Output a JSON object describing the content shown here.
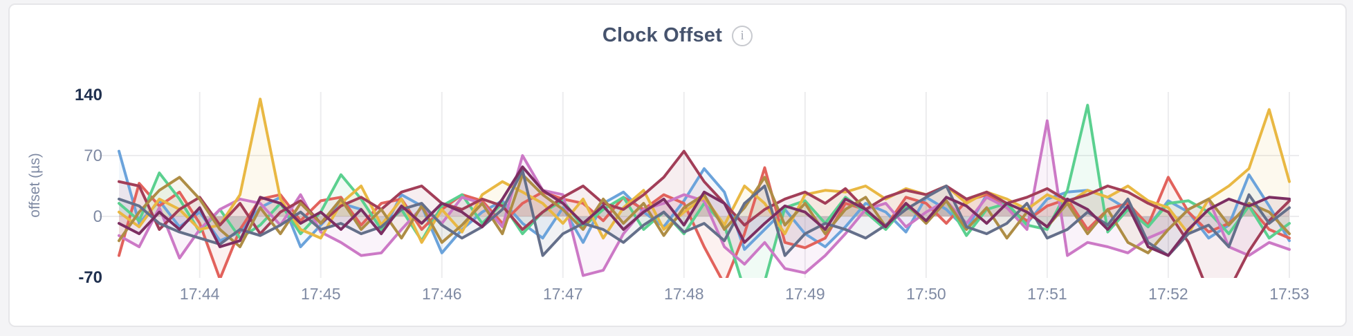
{
  "page": {
    "background_color": "#f4f4f6"
  },
  "card": {
    "background_color": "#ffffff",
    "border_color": "#e6e6e9"
  },
  "header": {
    "title": "Clock Offset",
    "info_icon_glyph": "i"
  },
  "chart_data": {
    "type": "line",
    "title": "Clock Offset",
    "xlabel": "",
    "ylabel": "offset (µs)",
    "x_start_time": "17:43:20",
    "x_end_time": "17:53:00",
    "sample_interval_seconds": 10,
    "x_tick_labels": [
      "17:44",
      "17:45",
      "17:46",
      "17:47",
      "17:48",
      "17:49",
      "17:50",
      "17:51",
      "17:52",
      "17:53"
    ],
    "x_tick_sample_indices": [
      4,
      10,
      16,
      22,
      28,
      34,
      40,
      46,
      52,
      58
    ],
    "ylim": [
      -70,
      140
    ],
    "y_ticks": [
      {
        "label": "140",
        "value": 140,
        "emphasized": true
      },
      {
        "label": "70",
        "value": 70,
        "emphasized": false
      },
      {
        "label": "0",
        "value": 0,
        "emphasized": false
      },
      {
        "label": "-70",
        "value": -70,
        "emphasized": true
      }
    ],
    "grid": {
      "vertical_at_x_ticks": true,
      "horizontal_at_values": [
        70,
        0
      ]
    },
    "legend": "none",
    "style": {
      "grid_color": "#ececee",
      "tick_label_color": "#7f8aa3",
      "emphasized_tick_color": "#20304f",
      "line_width": 4,
      "area_fill_opacity": 0.09
    },
    "series": [
      {
        "name": "series-1",
        "color": "#6BA3DB",
        "values": [
          75,
          -8,
          18,
          -12,
          5,
          -28,
          -18,
          10,
          22,
          -35,
          -10,
          15,
          8,
          -20,
          25,
          12,
          -42,
          -15,
          5,
          18,
          -8,
          -25,
          10,
          -30,
          15,
          28,
          5,
          -12,
          18,
          55,
          28,
          -38,
          -15,
          8,
          -20,
          -35,
          -12,
          15,
          5,
          -18,
          22,
          8,
          -15,
          25,
          12,
          -8,
          20,
          28,
          30,
          22,
          8,
          -12,
          18,
          5,
          -25,
          -10,
          48,
          12,
          -28
        ]
      },
      {
        "name": "series-2",
        "color": "#E2625C",
        "values": [
          -45,
          38,
          12,
          28,
          -8,
          -72,
          -15,
          20,
          25,
          -5,
          18,
          22,
          -10,
          15,
          20,
          -15,
          8,
          25,
          18,
          -8,
          15,
          28,
          20,
          15,
          -5,
          22,
          8,
          25,
          15,
          -35,
          -78,
          -20,
          56,
          -30,
          -36,
          -25,
          15,
          8,
          -12,
          22,
          15,
          -8,
          18,
          25,
          10,
          -5,
          12,
          20,
          -15,
          8,
          15,
          -10,
          45,
          5,
          -18,
          -8,
          12,
          -15,
          -25
        ]
      },
      {
        "name": "series-3",
        "color": "#5BD08F",
        "values": [
          15,
          -5,
          50,
          20,
          -18,
          8,
          -25,
          -10,
          15,
          -20,
          5,
          48,
          20,
          -15,
          8,
          -28,
          12,
          25,
          -8,
          15,
          -20,
          5,
          18,
          -12,
          8,
          22,
          -15,
          5,
          -20,
          15,
          -10,
          -85,
          -75,
          10,
          18,
          -8,
          22,
          5,
          -15,
          12,
          -5,
          18,
          -22,
          8,
          15,
          -10,
          -15,
          30,
          128,
          -18,
          8,
          -12,
          15,
          18,
          5,
          -20,
          12,
          -25,
          -8
        ]
      },
      {
        "name": "series-4",
        "color": "#CC79C6",
        "values": [
          -22,
          -35,
          10,
          -48,
          -15,
          8,
          20,
          15,
          -10,
          25,
          -18,
          -30,
          -45,
          -42,
          -15,
          10,
          -8,
          22,
          15,
          -12,
          70,
          30,
          25,
          -68,
          -62,
          -20,
          8,
          15,
          25,
          18,
          -35,
          -55,
          -30,
          -60,
          -65,
          -45,
          -20,
          8,
          15,
          -12,
          5,
          18,
          -8,
          22,
          10,
          -15,
          110,
          -45,
          -30,
          -35,
          -42,
          -25,
          -15,
          8,
          20,
          -35,
          -45,
          -30,
          -38
        ]
      },
      {
        "name": "series-5",
        "color": "#E9B843",
        "values": [
          5,
          -12,
          20,
          8,
          -15,
          -10,
          25,
          135,
          20,
          -15,
          -25,
          15,
          35,
          -10,
          20,
          -30,
          8,
          -18,
          25,
          40,
          28,
          15,
          -8,
          20,
          -25,
          10,
          30,
          -15,
          5,
          22,
          -10,
          35,
          15,
          -20,
          25,
          30,
          28,
          35,
          20,
          32,
          25,
          35,
          15,
          28,
          20,
          8,
          25,
          15,
          30,
          22,
          35,
          18,
          10,
          -20,
          20,
          35,
          55,
          123,
          40
        ]
      },
      {
        "name": "series-6",
        "color": "#A23E58",
        "values": [
          40,
          35,
          -15,
          8,
          22,
          -10,
          15,
          -20,
          5,
          18,
          -8,
          12,
          22,
          8,
          28,
          35,
          15,
          8,
          20,
          12,
          -15,
          5,
          22,
          35,
          15,
          8,
          25,
          45,
          75,
          40,
          15,
          -10,
          8,
          20,
          28,
          15,
          32,
          8,
          22,
          30,
          25,
          35,
          20,
          28,
          15,
          22,
          32,
          18,
          25,
          35,
          28,
          15,
          5,
          -30,
          -88,
          -85,
          -40,
          -5,
          18
        ]
      },
      {
        "name": "series-7",
        "color": "#AE8D45",
        "values": [
          -28,
          5,
          30,
          45,
          20,
          -15,
          -35,
          10,
          -20,
          15,
          -8,
          20,
          -15,
          8,
          -25,
          12,
          -30,
          -10,
          15,
          -20,
          48,
          25,
          8,
          -15,
          20,
          -8,
          15,
          -22,
          10,
          25,
          -15,
          10,
          45,
          -10,
          15,
          -20,
          8,
          22,
          -12,
          15,
          -8,
          18,
          -15,
          10,
          -25,
          5,
          -12,
          15,
          -20,
          8,
          -30,
          -42,
          -15,
          8,
          20,
          -10,
          15,
          5,
          -20
        ]
      },
      {
        "name": "series-8",
        "color": "#646F8A",
        "values": [
          20,
          12,
          -8,
          -18,
          -25,
          -32,
          -15,
          -22,
          -10,
          5,
          -15,
          -8,
          -20,
          -12,
          8,
          15,
          -10,
          -25,
          -12,
          8,
          53,
          -45,
          -20,
          -8,
          -15,
          -30,
          -10,
          5,
          -18,
          -8,
          -28,
          15,
          35,
          -45,
          -20,
          -8,
          -15,
          -25,
          -10,
          8,
          22,
          35,
          -12,
          -20,
          -8,
          15,
          -25,
          -15,
          5,
          -10,
          20,
          -30,
          -45,
          -20,
          -10,
          -35,
          25,
          -8,
          10
        ]
      },
      {
        "name": "series-9",
        "color": "#7C2E62",
        "values": [
          -8,
          -20,
          5,
          -15,
          10,
          -35,
          -28,
          22,
          15,
          -8,
          5,
          -15,
          8,
          -20,
          12,
          -8,
          15,
          5,
          -12,
          20,
          57,
          30,
          15,
          -8,
          12,
          -15,
          5,
          20,
          -10,
          28,
          15,
          -30,
          -8,
          12,
          5,
          -15,
          20,
          8,
          -12,
          15,
          -5,
          22,
          12,
          -8,
          15,
          5,
          -12,
          20,
          8,
          -15,
          12,
          -35,
          -45,
          -15,
          8,
          20,
          12,
          22,
          20
        ]
      }
    ]
  }
}
